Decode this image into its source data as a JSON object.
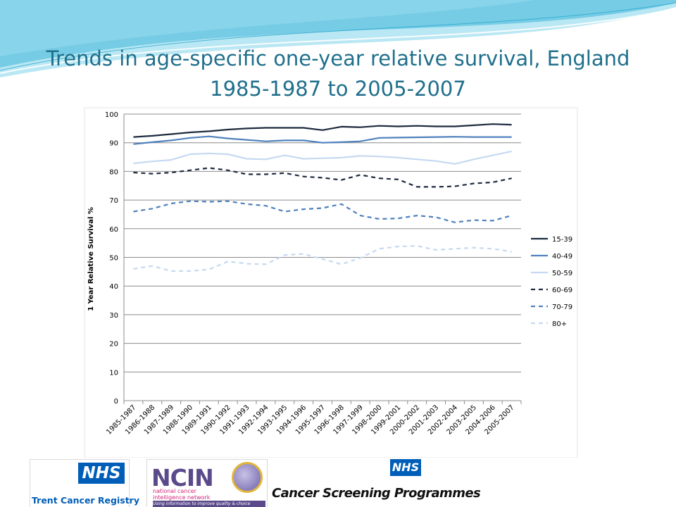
{
  "slide": {
    "title_lines": [
      "Trends in age-specific one-year relative survival, England",
      "1985-1987 to 2005-2007"
    ],
    "accent_colors": [
      "#1f6f8b",
      "#3fb7d9",
      "#7fd3ea"
    ]
  },
  "chart_data": {
    "type": "line",
    "ylabel": "1 Year Relative Survival %",
    "ylim": [
      0,
      100
    ],
    "y_ticks": [
      0,
      10,
      20,
      30,
      40,
      50,
      60,
      70,
      80,
      90,
      100
    ],
    "grid": true,
    "legend_position": "right",
    "categories": [
      "1985-1987",
      "1986-1988",
      "1987-1989",
      "1988-1990",
      "1989-1991",
      "1990-1992",
      "1991-1993",
      "1992-1994",
      "1993-1995",
      "1994-1996",
      "1995-1997",
      "1996-1998",
      "1997-1999",
      "1998-2000",
      "1999-2001",
      "2000-2002",
      "2001-2003",
      "2002-2004",
      "2003-2005",
      "2004-2006",
      "2005-2007"
    ],
    "series": [
      {
        "name": "15-39",
        "color": "#1c2b3f",
        "style": "solid",
        "values": [
          92.0,
          92.4,
          93.0,
          93.6,
          94.0,
          94.6,
          95.0,
          95.2,
          95.2,
          95.2,
          94.4,
          95.6,
          95.4,
          95.9,
          95.7,
          95.9,
          95.7,
          95.7,
          96.1,
          96.5,
          96.3
        ]
      },
      {
        "name": "40-49",
        "color": "#4f81bd",
        "style": "solid",
        "values": [
          89.5,
          90.2,
          90.8,
          91.7,
          92.2,
          91.5,
          91.0,
          90.5,
          90.8,
          90.8,
          90.0,
          90.2,
          90.5,
          91.7,
          91.8,
          91.9,
          92.0,
          92.1,
          92.0,
          92.0,
          92.0
        ]
      },
      {
        "name": "50-59",
        "color": "#c6d9f1",
        "style": "solid",
        "values": [
          82.8,
          83.5,
          84.0,
          86.0,
          86.3,
          86.0,
          84.4,
          84.2,
          85.6,
          84.4,
          84.6,
          84.8,
          85.4,
          85.2,
          84.8,
          84.2,
          83.6,
          82.6,
          84.2,
          85.6,
          87.0
        ]
      },
      {
        "name": "60-69",
        "color": "#1c2b3f",
        "style": "dashed",
        "values": [
          79.6,
          79.2,
          79.6,
          80.4,
          81.2,
          80.4,
          79.0,
          79.0,
          79.4,
          78.2,
          77.8,
          77.0,
          78.8,
          77.6,
          77.2,
          74.6,
          74.6,
          74.8,
          75.8,
          76.2,
          77.6
        ]
      },
      {
        "name": "70-79",
        "color": "#4f81bd",
        "style": "dashed",
        "values": [
          66.0,
          67.0,
          68.8,
          69.6,
          69.4,
          69.6,
          68.6,
          68.0,
          66.0,
          66.8,
          67.2,
          68.6,
          64.6,
          63.4,
          63.6,
          64.6,
          64.0,
          62.2,
          63.0,
          62.8,
          64.6
        ]
      },
      {
        "name": "80+",
        "color": "#c6d9f1",
        "style": "dashed",
        "values": [
          46.0,
          47.0,
          45.2,
          45.2,
          45.8,
          48.6,
          47.8,
          47.6,
          50.8,
          51.2,
          49.4,
          47.6,
          49.8,
          53.0,
          53.8,
          54.0,
          52.6,
          53.0,
          53.4,
          53.0,
          52.0
        ]
      }
    ]
  },
  "logos": {
    "trent_nhs": "NHS",
    "trent_name": "Trent Cancer Registry",
    "ncin_big": "NCIN",
    "ncin_sub": "national cancer intelligence network",
    "ncin_tag": "Using information to improve quality & choice",
    "csp_nhs": "NHS",
    "csp_name": "Cancer Screening Programmes"
  }
}
